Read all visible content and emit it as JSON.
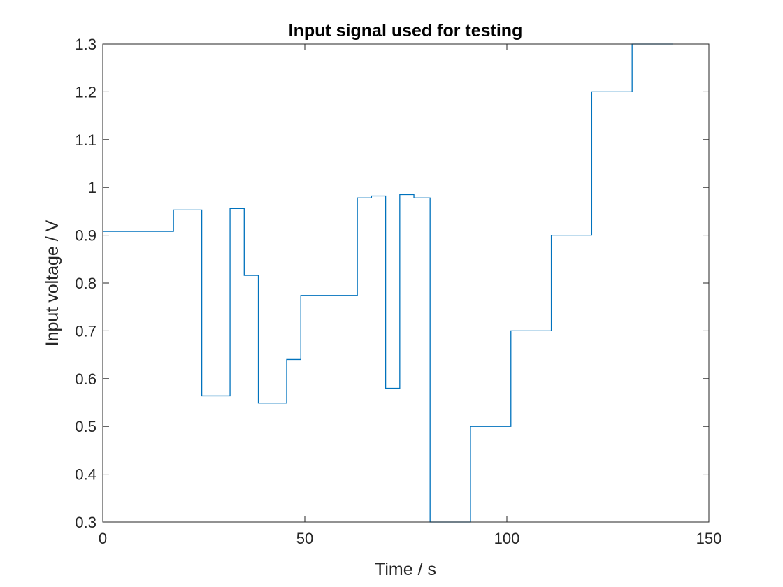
{
  "chart_data": {
    "type": "line",
    "title": "Input signal used for testing",
    "xlabel": "Time / s",
    "ylabel": "Input voltage / V",
    "xlim": [
      0,
      150
    ],
    "ylim": [
      0.3,
      1.3
    ],
    "xticks": [
      0,
      50,
      100,
      150
    ],
    "xtick_labels": [
      "0",
      "50",
      "100",
      "150"
    ],
    "yticks": [
      0.3,
      0.4,
      0.5,
      0.6,
      0.7,
      0.8,
      0.9,
      1.0,
      1.1,
      1.2,
      1.3
    ],
    "ytick_labels": [
      "0.3",
      "0.4",
      "0.5",
      "0.6",
      "0.7",
      "0.8",
      "0.9",
      "1",
      "1.1",
      "1.2",
      "1.3"
    ],
    "grid": false,
    "series": [
      {
        "color": "#0072bd",
        "x": [
          0,
          17.5,
          17.5,
          24.5,
          24.5,
          31.5,
          31.5,
          35,
          35,
          38.5,
          38.5,
          45.5,
          45.5,
          49,
          49,
          63,
          63,
          66.5,
          66.5,
          70,
          70,
          73.5,
          73.5,
          77,
          77,
          81,
          81,
          91,
          91,
          101,
          101,
          111,
          111,
          121,
          121,
          131,
          131,
          141
        ],
        "y": [
          0.908,
          0.908,
          0.953,
          0.953,
          0.564,
          0.564,
          0.956,
          0.956,
          0.816,
          0.816,
          0.549,
          0.549,
          0.64,
          0.64,
          0.774,
          0.774,
          0.978,
          0.978,
          0.982,
          0.982,
          0.58,
          0.58,
          0.985,
          0.985,
          0.978,
          0.978,
          0.3,
          0.3,
          0.5,
          0.5,
          0.7,
          0.7,
          0.9,
          0.9,
          1.2,
          1.2,
          1.3,
          1.3
        ]
      }
    ]
  }
}
